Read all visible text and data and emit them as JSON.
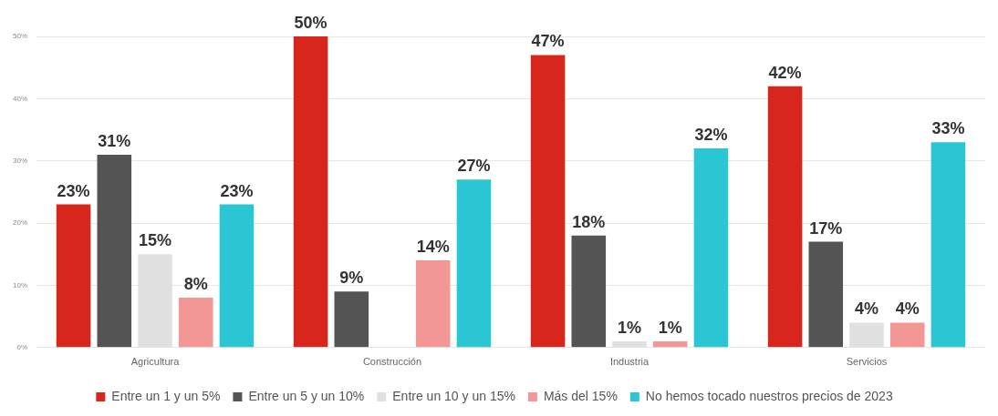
{
  "chart_data": {
    "type": "bar",
    "categories": [
      "Agricultura",
      "Construcción",
      "Industria",
      "Servicios"
    ],
    "series": [
      {
        "name": "Entre un 1 y un 5%",
        "color": "#d9261c",
        "values": [
          23,
          50,
          47,
          42
        ],
        "value_labels": [
          "23%",
          "50%",
          "47%",
          "42%"
        ]
      },
      {
        "name": "Entre un 5 y un 10%",
        "color": "#545454",
        "values": [
          31,
          9,
          18,
          17
        ],
        "value_labels": [
          "31%",
          "9%",
          "18%",
          "17%"
        ]
      },
      {
        "name": "Entre un 10 y un 15%",
        "color": "#e0e0e0",
        "values": [
          15,
          null,
          1,
          4
        ],
        "value_labels": [
          "15%",
          null,
          "1%",
          "4%"
        ]
      },
      {
        "name": "Más del 15%",
        "color": "#f29696",
        "values": [
          8,
          14,
          1,
          4
        ],
        "value_labels": [
          "8%",
          "14%",
          "1%",
          "4%"
        ]
      },
      {
        "name": "No hemos tocado nuestros precios de 2023",
        "color": "#2bc6d3",
        "values": [
          23,
          27,
          32,
          33
        ],
        "value_labels": [
          "23%",
          "27%",
          "32%",
          "33%"
        ]
      }
    ],
    "ylim": [
      0,
      50
    ],
    "yticks": [
      {
        "value": 0,
        "label": "0%"
      },
      {
        "value": 10,
        "label": "10%"
      },
      {
        "value": 20,
        "label": "20%"
      },
      {
        "value": 30,
        "label": "30%"
      },
      {
        "value": 40,
        "label": "40%"
      },
      {
        "value": 50,
        "label": "50%"
      }
    ],
    "grid": "y",
    "legend": "bottom"
  }
}
